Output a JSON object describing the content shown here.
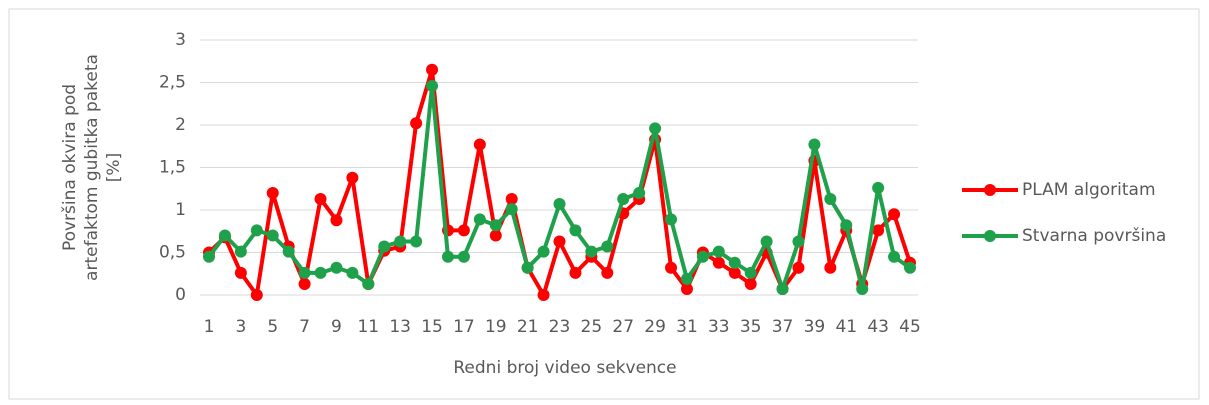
{
  "chart_data": {
    "type": "line",
    "y_label": "Površina okvira pod artefaktom gubitka paketa [%]",
    "x_label": "Redni broj video sekvence",
    "categories": [
      "1",
      null,
      "3",
      null,
      "5",
      null,
      "7",
      null,
      "9",
      null,
      "11",
      null,
      "13",
      null,
      "15",
      null,
      "17",
      null,
      "19",
      null,
      "21",
      null,
      "23",
      null,
      "25",
      null,
      "27",
      null,
      "29",
      null,
      "31",
      null,
      "33",
      null,
      "35",
      null,
      "37",
      null,
      "39",
      null,
      "41",
      null,
      "43",
      null,
      "45"
    ],
    "series": [
      {
        "name": "PLAM algoritam",
        "color": "#ff0000",
        "values": [
          0.5,
          0.68,
          0.26,
          0.0,
          1.2,
          0.57,
          0.13,
          1.13,
          0.88,
          1.38,
          0.13,
          0.52,
          0.57,
          2.02,
          2.65,
          0.76,
          0.76,
          1.77,
          0.7,
          1.13,
          0.32,
          0.0,
          0.63,
          0.26,
          0.45,
          0.26,
          0.96,
          1.13,
          1.83,
          0.32,
          0.07,
          0.5,
          0.38,
          0.26,
          0.13,
          0.5,
          0.07,
          0.32,
          1.58,
          0.32,
          0.76,
          0.13,
          0.76,
          0.95,
          0.38
        ]
      },
      {
        "name": "Stvarna površina",
        "color": "#1fa04a",
        "values": [
          0.45,
          0.7,
          0.51,
          0.76,
          0.7,
          0.51,
          0.26,
          0.26,
          0.32,
          0.26,
          0.13,
          0.57,
          0.63,
          0.63,
          2.46,
          0.45,
          0.45,
          0.89,
          0.82,
          1.01,
          0.32,
          0.51,
          1.07,
          0.76,
          0.51,
          0.57,
          1.13,
          1.2,
          1.96,
          0.89,
          0.19,
          0.45,
          0.51,
          0.38,
          0.26,
          0.63,
          0.07,
          0.63,
          1.77,
          1.13,
          0.82,
          0.07,
          1.26,
          0.45,
          0.32
        ]
      }
    ],
    "ylim": [
      0,
      3
    ],
    "yticks": [
      0,
      {
        "value": 0.5,
        "label": "0,5"
      },
      1,
      {
        "value": 1.5,
        "label": "1,5"
      },
      2,
      {
        "value": 2.5,
        "label": "2,5"
      },
      3
    ],
    "grid": true,
    "legend": "right"
  }
}
